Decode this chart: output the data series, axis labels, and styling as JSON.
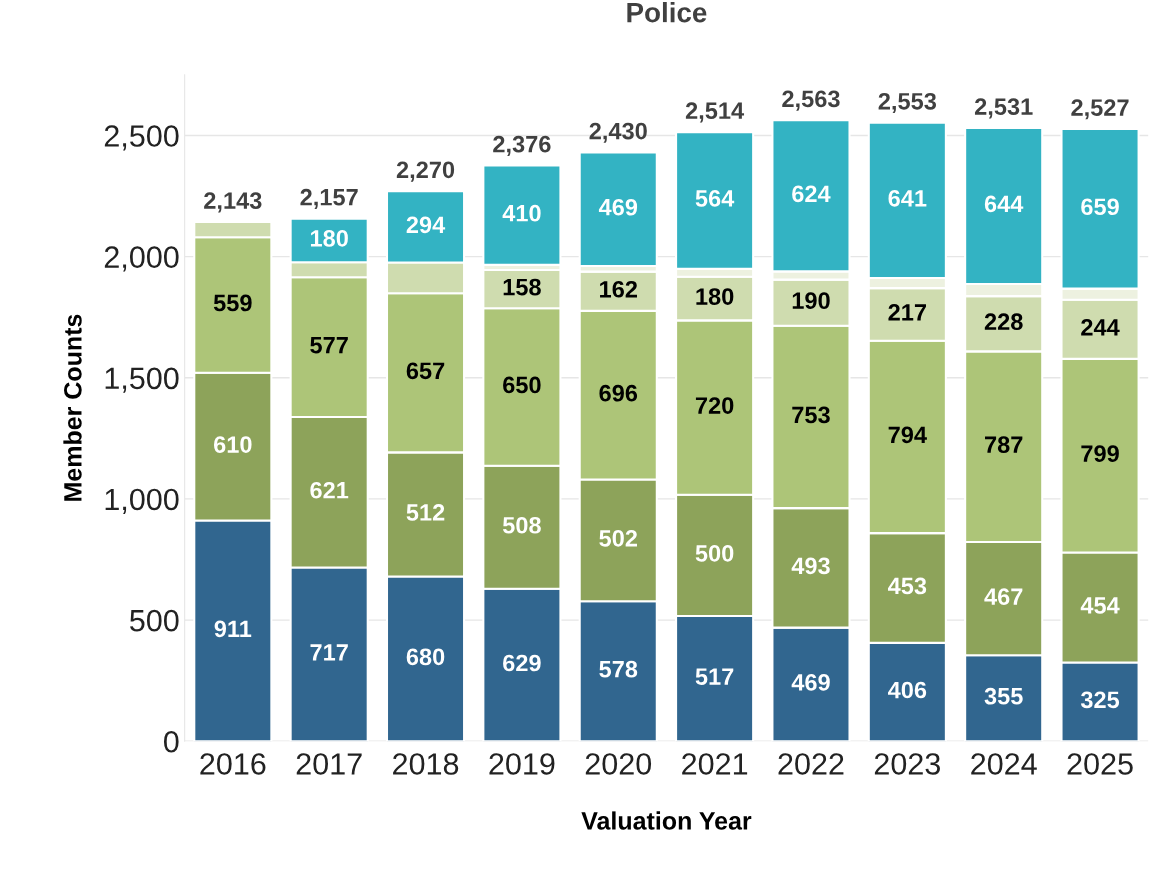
{
  "chart_data": {
    "type": "bar",
    "title": "Police",
    "xlabel": "Valuation Year",
    "ylabel": "Member Counts",
    "categories": [
      "2016",
      "2017",
      "2018",
      "2019",
      "2020",
      "2021",
      "2022",
      "2023",
      "2024",
      "2025"
    ],
    "stacked": true,
    "grid": "y",
    "legend": false,
    "ylim": [
      0,
      2750
    ],
    "yticks": [
      0,
      500,
      {
        "value": 1000,
        "label": "1,000"
      },
      {
        "value": 1500,
        "label": "1,500"
      },
      {
        "value": 2000,
        "label": "2,000"
      },
      {
        "value": 2500,
        "label": "2,500"
      }
    ],
    "series": [
      {
        "color": "#31668f",
        "values": [
          911,
          717,
          680,
          629,
          578,
          517,
          469,
          406,
          355,
          325
        ],
        "value_labels": [
          "911",
          "717",
          "680",
          "629",
          "578",
          "517",
          "469",
          "406",
          "355",
          "325"
        ]
      },
      {
        "color": "#8da35a",
        "values": [
          610,
          621,
          512,
          508,
          502,
          500,
          493,
          453,
          467,
          454
        ],
        "value_labels": [
          "610",
          "621",
          "512",
          "508",
          "502",
          "500",
          "493",
          "453",
          "467",
          "454"
        ]
      },
      {
        "color": "#adc578",
        "values": [
          559,
          577,
          657,
          650,
          696,
          720,
          753,
          794,
          787,
          799
        ],
        "value_labels": [
          "559",
          "577",
          "657",
          "650",
          "696",
          "720",
          "753",
          "794",
          "787",
          "799"
        ]
      },
      {
        "color": "#cfdcaf",
        "values": [
          63,
          62,
          127,
          158,
          162,
          180,
          190,
          217,
          228,
          244
        ],
        "value_labels": [
          null,
          null,
          null,
          "158",
          "162",
          "180",
          "190",
          "217",
          "228",
          "244"
        ]
      },
      {
        "color": "#edf1e0",
        "values": [
          null,
          null,
          null,
          21,
          23,
          33,
          34,
          42,
          50,
          46
        ],
        "value_labels": [
          null,
          null,
          null,
          null,
          null,
          null,
          null,
          null,
          null,
          null
        ]
      },
      {
        "color": "#33b3c3",
        "values": [
          null,
          180,
          294,
          410,
          469,
          564,
          624,
          641,
          644,
          659
        ],
        "value_labels": [
          null,
          "180",
          "294",
          "410",
          "469",
          "564",
          "624",
          "641",
          "644",
          "659"
        ]
      }
    ],
    "totals": [
      "2,143",
      "2,157",
      "2,270",
      "2,376",
      "2,430",
      "2,514",
      "2,563",
      "2,553",
      "2,531",
      "2,527"
    ]
  }
}
